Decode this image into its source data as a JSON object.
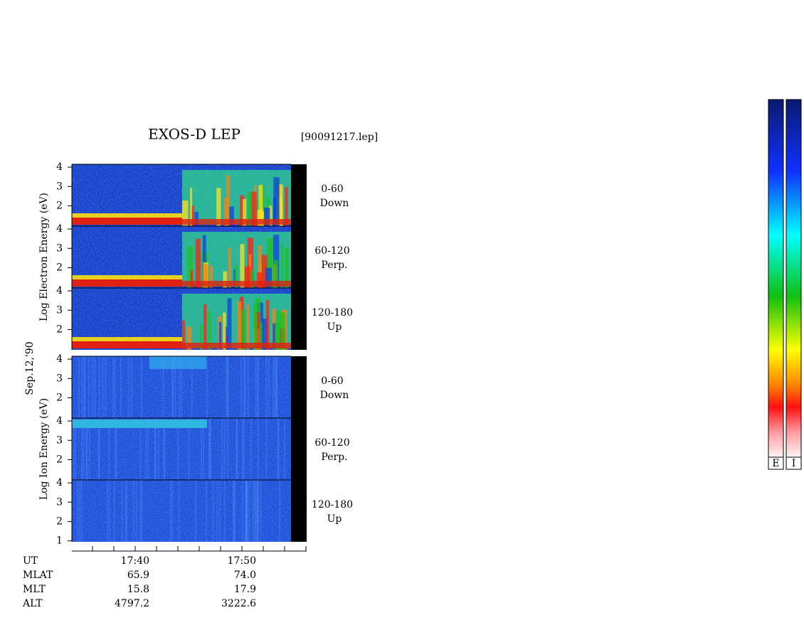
{
  "title": "EXOS-D LEP",
  "file": "[90091217.lep]",
  "date": "Sep.12,'90",
  "groups": [
    {
      "ylabel": "Log Electron Energy (eV)",
      "panels": [
        {
          "angle": "0-60",
          "direction": "Down",
          "yticks": [
            2,
            3,
            4
          ]
        },
        {
          "angle": "60-120",
          "direction": "Perp.",
          "yticks": [
            2,
            3,
            4
          ]
        },
        {
          "angle": "120-180",
          "direction": "Up",
          "yticks": [
            2,
            3,
            4
          ]
        }
      ]
    },
    {
      "ylabel": "Log Ion Energy (eV)",
      "panels": [
        {
          "angle": "0-60",
          "direction": "Down",
          "yticks": [
            2,
            3,
            4
          ]
        },
        {
          "angle": "60-120",
          "direction": "Perp.",
          "yticks": [
            2,
            3,
            4
          ]
        },
        {
          "angle": "120-180",
          "direction": "Up",
          "yticks": [
            1,
            2,
            3,
            4
          ]
        }
      ]
    }
  ],
  "orbit": {
    "rows": [
      [
        "UT",
        "17:40",
        "17:50"
      ],
      [
        "MLAT",
        "65.9",
        "74.0"
      ],
      [
        "MLT",
        "15.8",
        "17.9"
      ],
      [
        "ALT",
        "4797.2",
        "3222.6"
      ]
    ]
  },
  "colorbars": [
    "E",
    "I"
  ]
}
